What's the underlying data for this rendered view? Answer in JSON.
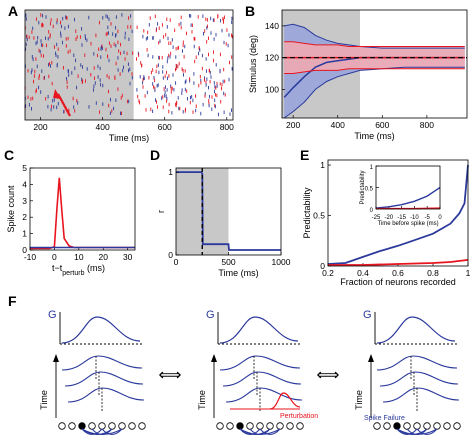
{
  "colors": {
    "red": "#e8141e",
    "blue": "#2b3a9c",
    "gray_shade": "#c8c8c8",
    "pink_band": "#f5a9b0",
    "blue_band": "#8c9be0"
  },
  "panels": {
    "A": "A",
    "B": "B",
    "C": "C",
    "D": "D",
    "E": "E",
    "F": "F"
  },
  "chart_data": [
    {
      "panel": "A",
      "type": "scatter",
      "description_kind": "raster",
      "xlabel": "Time (ms)",
      "ylabel": "",
      "xlim": [
        150,
        820
      ],
      "xticks": [
        200,
        400,
        600,
        800
      ],
      "shaded_interval": [
        150,
        500
      ],
      "arrow_at": 250,
      "series": [
        {
          "color": "red",
          "spike_times_note": "perturbed network spikes"
        },
        {
          "color": "blue",
          "spike_times_note": "control network spikes"
        }
      ]
    },
    {
      "panel": "B",
      "type": "line",
      "xlabel": "Time (ms)",
      "ylabel": "Stimulus (deg)",
      "xlim": [
        150,
        980
      ],
      "ylim": [
        82,
        150
      ],
      "xticks": [
        200,
        400,
        600,
        800
      ],
      "yticks": [
        100,
        120,
        140
      ],
      "shaded_interval": [
        150,
        500
      ],
      "reference_level": 120,
      "series": [
        {
          "color": "blue",
          "x": [
            160,
            200,
            250,
            300,
            350,
            400,
            450,
            500,
            600,
            700,
            800,
            900,
            970
          ],
          "mean": [
            95,
            101,
            108,
            114,
            117,
            118,
            119,
            120,
            120,
            120,
            120,
            120,
            120
          ],
          "upper": [
            140,
            141,
            139,
            134,
            131,
            129,
            128,
            127,
            126,
            126,
            126,
            126,
            126
          ],
          "lower": [
            82,
            86,
            92,
            100,
            105,
            108,
            110,
            112,
            113,
            114,
            114,
            114,
            114
          ]
        },
        {
          "color": "red",
          "x": [
            160,
            200,
            250,
            300,
            350,
            400,
            450,
            500,
            600,
            700,
            800,
            900,
            970
          ],
          "mean": [
            120,
            120,
            120,
            120,
            120,
            120,
            120,
            120,
            120,
            120,
            120,
            120,
            120
          ],
          "upper": [
            130,
            130,
            129,
            128,
            128,
            128,
            127,
            127,
            127,
            127,
            127,
            127,
            127
          ],
          "lower": [
            110,
            110,
            111,
            112,
            112,
            112,
            113,
            113,
            113,
            113,
            113,
            113,
            113
          ]
        }
      ]
    },
    {
      "panel": "C",
      "type": "line",
      "xlabel_main": "t−t",
      "xlabel_sub": "perturb",
      "xlabel_unit": " (ms)",
      "ylabel": "Spike count",
      "xlim": [
        -10,
        33
      ],
      "ylim": [
        0,
        5
      ],
      "xticks": [
        -10,
        0,
        10,
        20,
        30
      ],
      "yticks": [
        0,
        1,
        2,
        3,
        4,
        5
      ],
      "series": [
        {
          "color": "red",
          "x": [
            -10,
            -2,
            0,
            1,
            2,
            3,
            4,
            6,
            8,
            33
          ],
          "y": [
            0.1,
            0.1,
            0.2,
            2.5,
            4.4,
            2.5,
            0.7,
            0.25,
            0.15,
            0.15
          ]
        },
        {
          "color": "blue",
          "x": [
            -10,
            0,
            5,
            10,
            20,
            33
          ],
          "y": [
            0.15,
            0.15,
            0.15,
            0.15,
            0.15,
            0.15
          ]
        }
      ]
    },
    {
      "panel": "D",
      "type": "line",
      "xlabel": "Time (ms)",
      "ylabel": "r",
      "xlim": [
        0,
        1000
      ],
      "ylim": [
        0,
        1.05
      ],
      "xticks": [
        0,
        500,
        1000
      ],
      "yticks": [
        0,
        1
      ],
      "shaded_interval": [
        0,
        500
      ],
      "dashed_vline": 250,
      "series": [
        {
          "color": "blue",
          "x": [
            0,
            240,
            250,
            255,
            500,
            505,
            1000
          ],
          "y": [
            1,
            1,
            0.98,
            0.13,
            0.13,
            0.06,
            0.06
          ]
        }
      ]
    },
    {
      "panel": "E",
      "type": "line",
      "xlabel": "Fraction of neurons recorded",
      "ylabel": "Predictability",
      "xlim": [
        0.2,
        1.0
      ],
      "ylim": [
        0,
        1.05
      ],
      "xticks": [
        0.2,
        0.4,
        0.6,
        0.8,
        1
      ],
      "yticks": [
        0,
        0.5,
        1
      ],
      "series": [
        {
          "color": "blue",
          "x": [
            0.2,
            0.3,
            0.4,
            0.5,
            0.6,
            0.7,
            0.8,
            0.9,
            0.95,
            0.98,
            1.0
          ],
          "y": [
            0.02,
            0.03,
            0.09,
            0.15,
            0.2,
            0.26,
            0.32,
            0.42,
            0.52,
            0.62,
            1.0
          ]
        },
        {
          "color": "red",
          "x": [
            0.2,
            0.4,
            0.6,
            0.8,
            0.9,
            1.0
          ],
          "y": [
            0.01,
            0.01,
            0.02,
            0.03,
            0.04,
            0.06
          ]
        }
      ],
      "inset": {
        "xlabel": "Time before spike (ms)",
        "ylabel": "Predictability",
        "xlim": [
          -25,
          0
        ],
        "ylim": [
          0,
          1
        ],
        "xticks": [
          -25,
          -20,
          -15,
          -10,
          -5,
          0
        ],
        "yticks": [
          0,
          0.5,
          1
        ],
        "series": [
          {
            "color": "blue",
            "x": [
              -25,
              -20,
              -15,
              -10,
              -5,
              -2,
              0
            ],
            "y": [
              0.02,
              0.05,
              0.1,
              0.18,
              0.3,
              0.42,
              0.5
            ]
          },
          {
            "color": "red",
            "x": [
              -25,
              -10,
              0
            ],
            "y": [
              0.01,
              0.01,
              0.02
            ]
          }
        ]
      }
    }
  ],
  "schematic": {
    "g_label": "G",
    "time_label": "Time",
    "perturbation_label": "Perturbation",
    "spike_failure_label": "Spike Failure",
    "arrow_symbol": "⟺"
  }
}
